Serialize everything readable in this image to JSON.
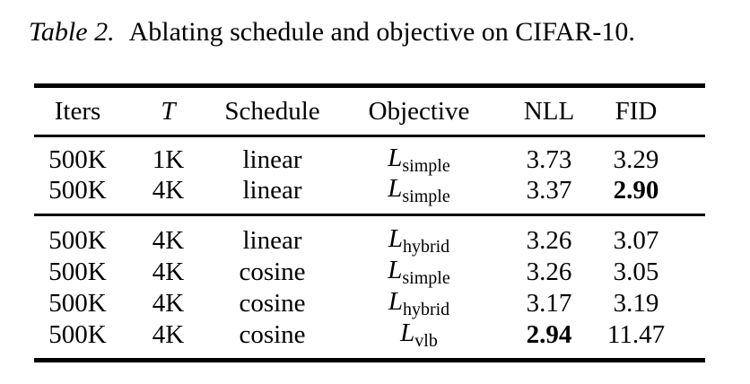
{
  "caption": {
    "label": "Table 2.",
    "text": "Ablating schedule and objective on CIFAR-10."
  },
  "colors": {
    "text": "#000000",
    "background": "#ffffff"
  },
  "table": {
    "headers": [
      "Iters",
      "T",
      "Schedule",
      "Objective",
      "NLL",
      "FID"
    ],
    "groups": [
      {
        "rows": [
          {
            "iters": "500K",
            "t": "1K",
            "schedule": "linear",
            "objective_base": "L",
            "objective_sub": "simple",
            "nll": "3.73",
            "nll_bold": false,
            "fid": "3.29",
            "fid_bold": false
          },
          {
            "iters": "500K",
            "t": "4K",
            "schedule": "linear",
            "objective_base": "L",
            "objective_sub": "simple",
            "nll": "3.37",
            "nll_bold": false,
            "fid": "2.90",
            "fid_bold": true
          }
        ]
      },
      {
        "rows": [
          {
            "iters": "500K",
            "t": "4K",
            "schedule": "linear",
            "objective_base": "L",
            "objective_sub": "hybrid",
            "nll": "3.26",
            "nll_bold": false,
            "fid": "3.07",
            "fid_bold": false
          },
          {
            "iters": "500K",
            "t": "4K",
            "schedule": "cosine",
            "objective_base": "L",
            "objective_sub": "simple",
            "nll": "3.26",
            "nll_bold": false,
            "fid": "3.05",
            "fid_bold": false
          },
          {
            "iters": "500K",
            "t": "4K",
            "schedule": "cosine",
            "objective_base": "L",
            "objective_sub": "hybrid",
            "nll": "3.17",
            "nll_bold": false,
            "fid": "3.19",
            "fid_bold": false
          },
          {
            "iters": "500K",
            "t": "4K",
            "schedule": "cosine",
            "objective_base": "L",
            "objective_sub": "vlb",
            "nll": "2.94",
            "nll_bold": true,
            "fid": "11.47",
            "fid_bold": false
          }
        ]
      }
    ]
  }
}
